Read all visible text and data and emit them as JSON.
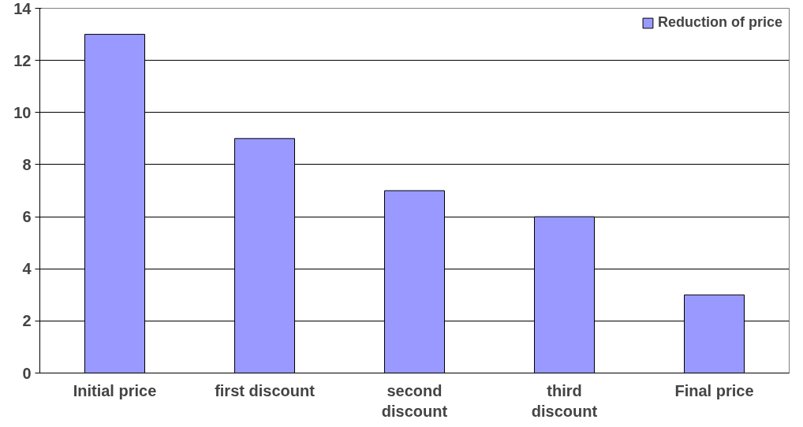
{
  "chart_data": {
    "type": "bar",
    "categories": [
      "Initial price",
      "first discount",
      "second\ndiscount",
      "third\ndiscount",
      "Final price"
    ],
    "series": [
      {
        "name": "Reduction of price",
        "color": "#9999ff",
        "values": [
          13,
          9,
          7,
          6,
          3
        ]
      }
    ],
    "ylim": [
      0,
      14
    ],
    "yticks": [
      0,
      2,
      4,
      6,
      8,
      10,
      12,
      14
    ],
    "grid": "y",
    "legend": "top right"
  }
}
